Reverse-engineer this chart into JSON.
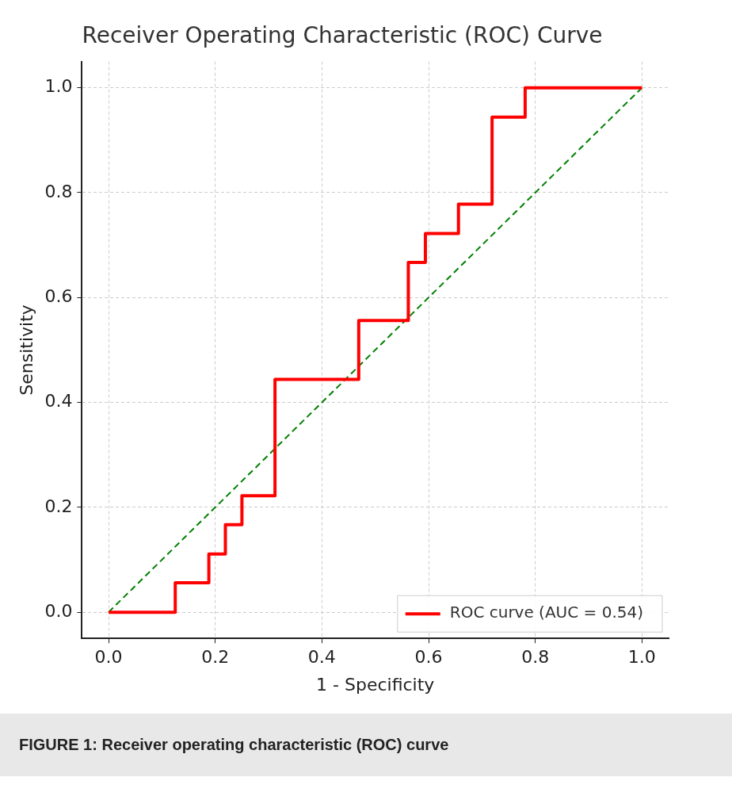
{
  "chart_data": {
    "type": "step",
    "title": "Receiver Operating Characteristic (ROC) Curve",
    "xlabel": "1 - Specificity",
    "ylabel": "Sensitivity",
    "series": [
      {
        "name": "ROC curve (AUC = 0.54)",
        "color": "#ff0000",
        "x": [
          0,
          0.125,
          0.188,
          0.219,
          0.25,
          0.312,
          0.469,
          0.562,
          0.594,
          0.656,
          0.719,
          0.781,
          1.0
        ],
        "values": [
          0,
          0.056,
          0.111,
          0.167,
          0.222,
          0.444,
          0.556,
          0.667,
          0.722,
          0.778,
          0.944,
          1.0,
          1.0
        ]
      },
      {
        "type": "line",
        "color": "#008000",
        "line_style": "dashed",
        "x": [
          0,
          1
        ],
        "values": [
          0,
          1
        ]
      }
    ],
    "xlim": [
      -0.05,
      1.05
    ],
    "ylim": [
      -0.05,
      1.05
    ],
    "xticks": [
      {
        "value": 0,
        "label": "0.0"
      },
      {
        "value": 0.2,
        "label": "0.2"
      },
      {
        "value": 0.4,
        "label": "0.4"
      },
      {
        "value": 0.6,
        "label": "0.6"
      },
      {
        "value": 0.8,
        "label": "0.8"
      },
      {
        "value": 1,
        "label": "1.0"
      }
    ],
    "yticks": [
      {
        "value": 0,
        "label": "0.0"
      },
      {
        "value": 0.2,
        "label": "0.2"
      },
      {
        "value": 0.4,
        "label": "0.4"
      },
      {
        "value": 0.6,
        "label": "0.6"
      },
      {
        "value": 0.8,
        "label": "0.8"
      },
      {
        "value": 1,
        "label": "1.0"
      }
    ],
    "grid": true,
    "legend": "bottom right",
    "marker": "none",
    "annotations": [
      "FIGURE 1: Receiver operating characteristic (ROC) curve"
    ]
  }
}
